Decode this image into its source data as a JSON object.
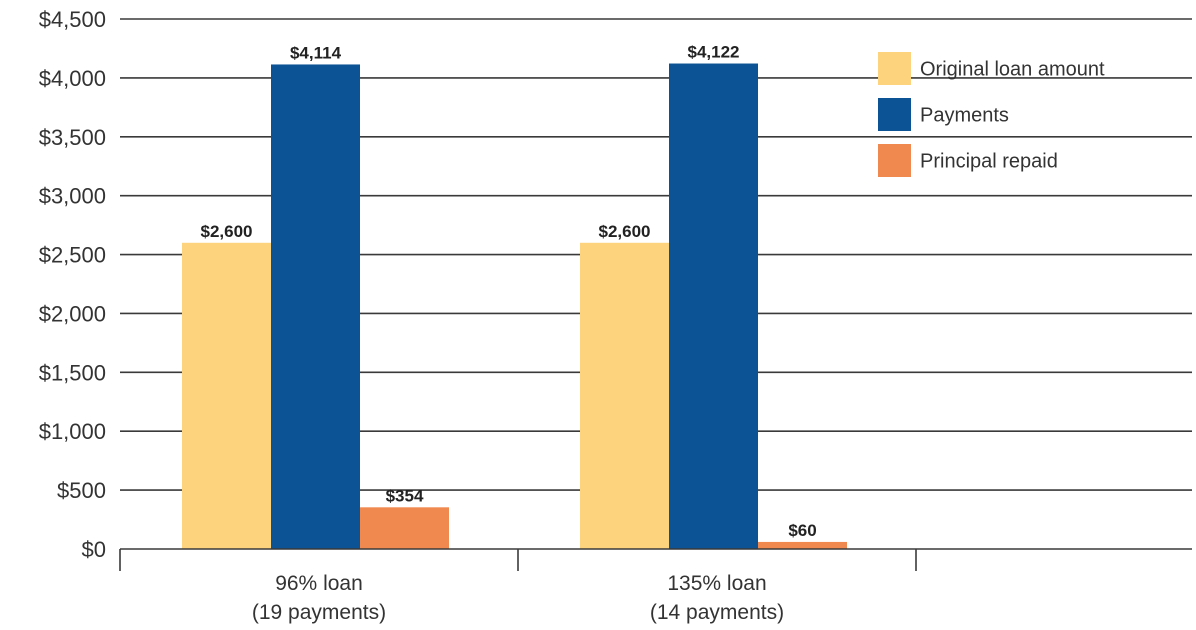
{
  "chart_data": {
    "type": "bar",
    "categories": [
      [
        "96% loan",
        "(19 payments)"
      ],
      [
        "135% loan",
        "(14 payments)"
      ]
    ],
    "series": [
      {
        "name": "Original loan amount",
        "values": [
          2600,
          2600
        ],
        "labels": [
          "$2,600",
          "$2,600"
        ],
        "color": "#FDD37E"
      },
      {
        "name": "Payments",
        "values": [
          4114,
          4122
        ],
        "labels": [
          "$4,114",
          "$4,122"
        ],
        "color": "#0B5394"
      },
      {
        "name": "Principal repaid",
        "values": [
          354,
          60
        ],
        "labels": [
          "$354",
          "$60"
        ],
        "color": "#F0894F"
      }
    ],
    "yticks": [
      0,
      500,
      1000,
      1500,
      2000,
      2500,
      3000,
      3500,
      4000,
      4500
    ],
    "ytick_labels": [
      "$0",
      "$500",
      "$1,000",
      "$1,500",
      "$2,000",
      "$2,500",
      "$3,000",
      "$3,500",
      "$4,000",
      "$4,500"
    ],
    "ylim": [
      0,
      4500
    ],
    "grid": true,
    "legend": "top-right"
  }
}
